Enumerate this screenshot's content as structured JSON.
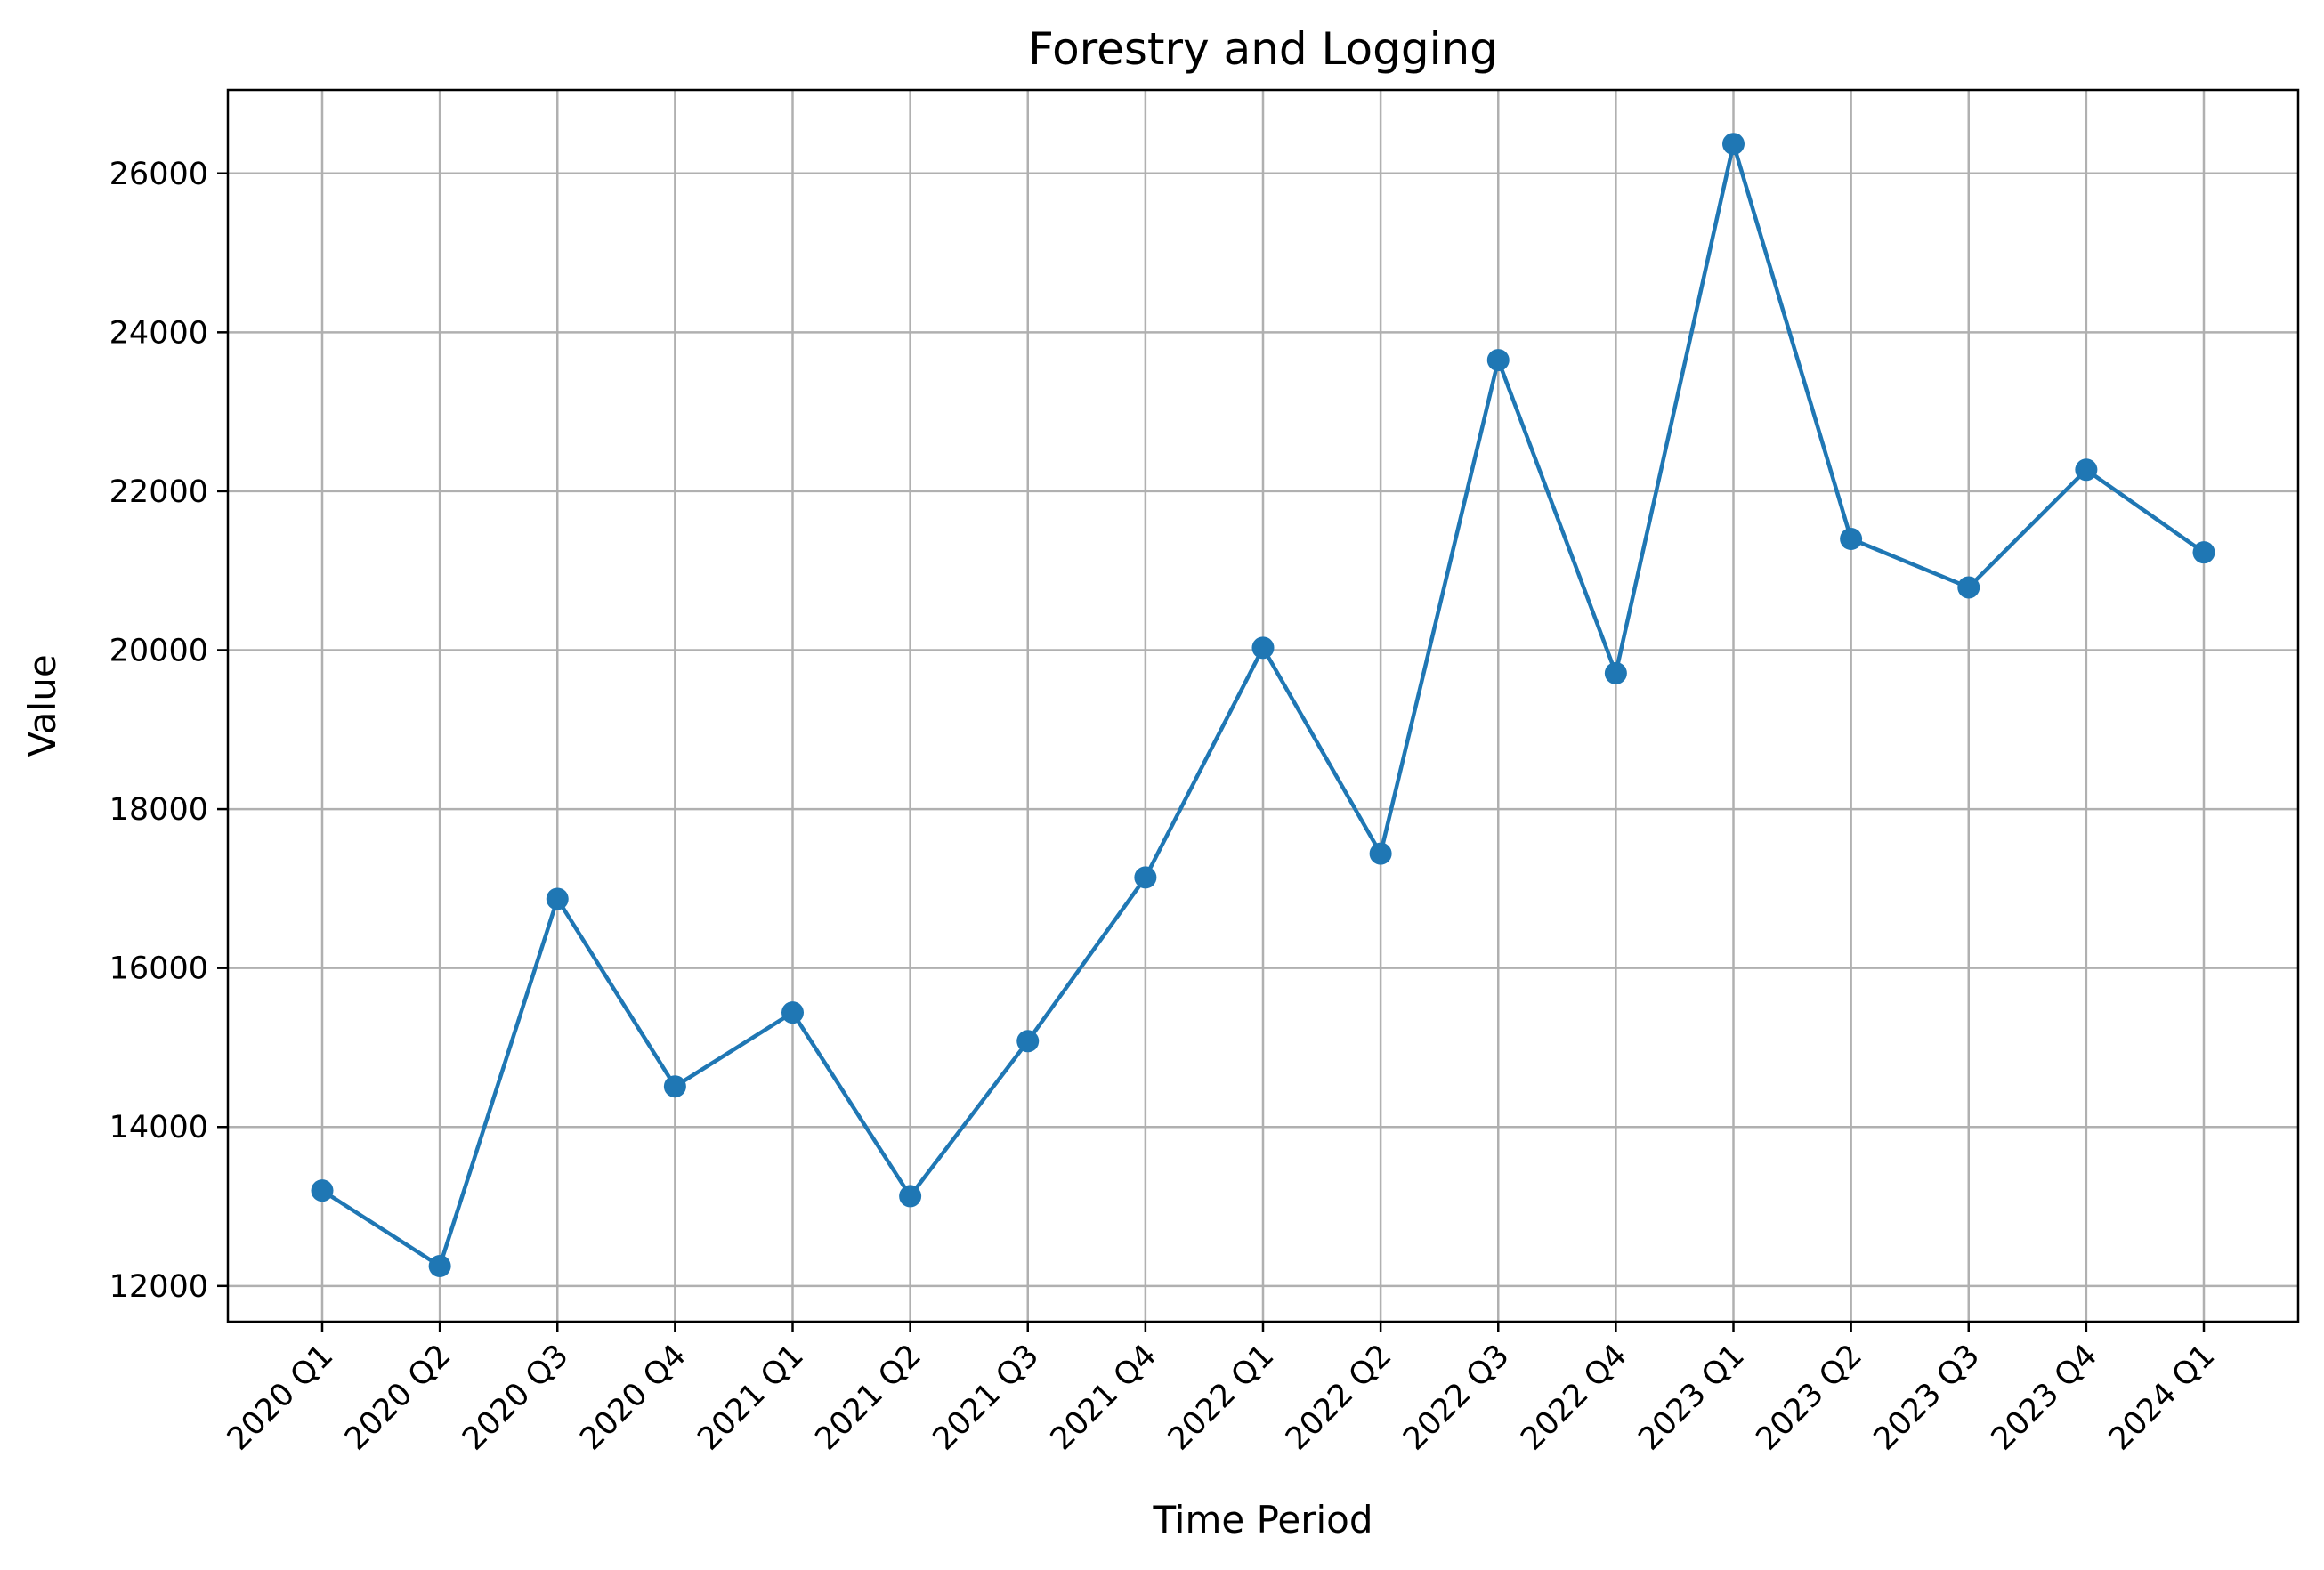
{
  "chart_data": {
    "type": "line",
    "title": "Forestry and Logging",
    "xlabel": "Time Period",
    "ylabel": "Value",
    "categories": [
      "2020 Q1",
      "2020 Q2",
      "2020 Q3",
      "2020 Q4",
      "2021 Q1",
      "2021 Q2",
      "2021 Q3",
      "2021 Q4",
      "2022 Q1",
      "2022 Q2",
      "2022 Q3",
      "2022 Q4",
      "2023 Q1",
      "2023 Q2",
      "2023 Q3",
      "2023 Q4",
      "2024 Q1"
    ],
    "series": [
      {
        "values": [
          13200,
          12250,
          16870,
          14510,
          15440,
          13130,
          15080,
          17140,
          20030,
          17440,
          23650,
          19710,
          26370,
          21400,
          20790,
          22270,
          21230
        ]
      }
    ],
    "ylim": [
      11550,
      27050
    ],
    "yticks": [
      12000,
      14000,
      16000,
      18000,
      20000,
      22000,
      24000,
      26000
    ],
    "grid": true,
    "line_color": "#1f77b4",
    "marker": "circle"
  }
}
